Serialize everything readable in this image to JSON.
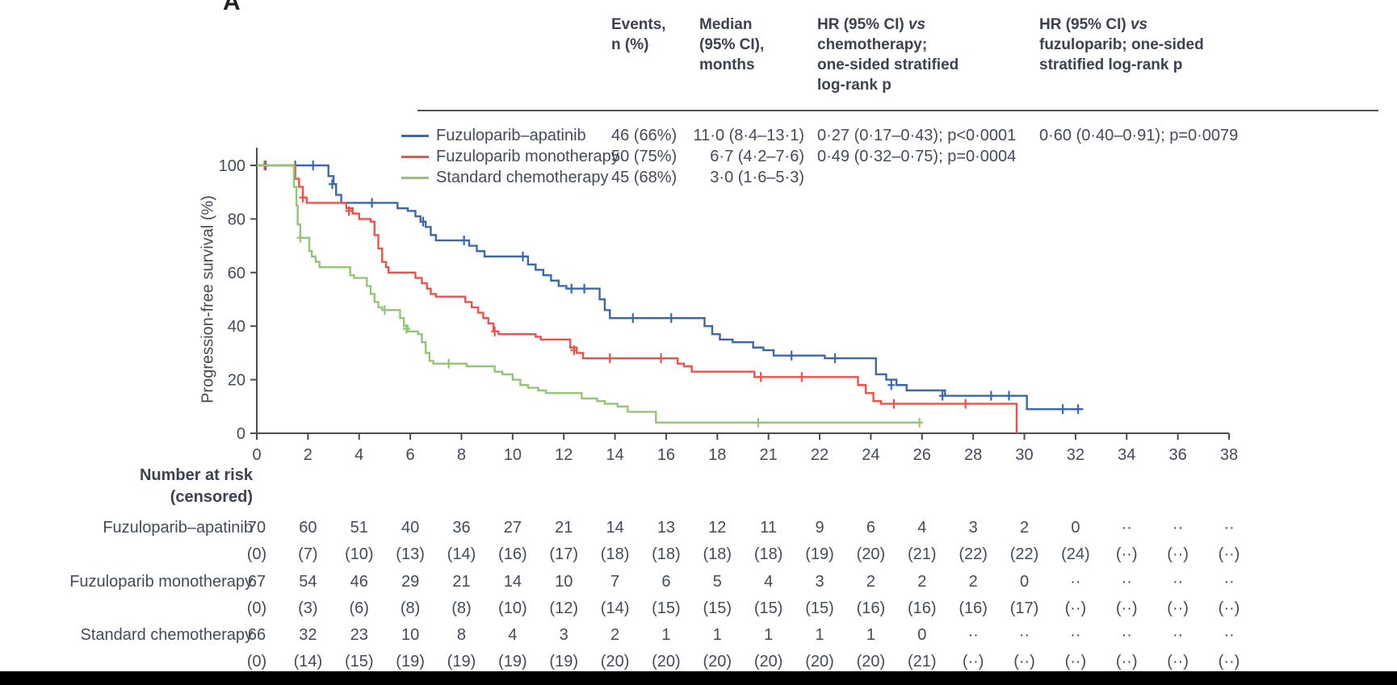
{
  "panel_label": "A",
  "colors": {
    "axis": "#4c4c4e",
    "text": "#434b5a",
    "rule": "#515151",
    "bottom_bar": "#000000"
  },
  "header": {
    "events": "Events,\nn (%)",
    "median": "Median\n(95% CI),\nmonths",
    "hr_chemo": {
      "pre": "HR (95% CI) ",
      "vs": "vs",
      "rest": "\nchemotherapy;\none-sided stratified\nlog-rank p"
    },
    "hr_fuzu": {
      "pre": "HR (95% CI) ",
      "vs": "vs",
      "rest": "\nfuzuloparib; one-sided\nstratified log-rank p"
    }
  },
  "chart_data": {
    "type": "line",
    "subtype": "kaplan-meier-step",
    "title": "",
    "xlabel": "",
    "ylabel": "Progression-free survival (%)",
    "xlim": [
      0,
      38
    ],
    "ylim": [
      0,
      100
    ],
    "yticks": [
      0,
      20,
      40,
      60,
      80,
      100
    ],
    "xtick_labels": [
      "0",
      "2",
      "4",
      "6",
      "8",
      "10",
      "12",
      "14",
      "16",
      "18",
      "21",
      "22",
      "24",
      "26",
      "28",
      "30",
      "32",
      "34",
      "36",
      "38"
    ],
    "grid": false,
    "legend_position": "top-left-of-plot",
    "groups": [
      {
        "name": "Fuzuloparib–apatinib",
        "color": "#3a68ae",
        "events": "46 (66%)",
        "median": "11·0 (8·4–13·1)",
        "hr_vs_chemo": "0·27 (0·17–0·43); p<0·0001",
        "hr_vs_fuzuloparib": "0·60 (0·40–0·91); p=0·0079",
        "steps": [
          [
            0,
            100
          ],
          [
            2.6,
            100
          ],
          [
            2.8,
            96
          ],
          [
            3.0,
            93
          ],
          [
            3.1,
            89
          ],
          [
            3.3,
            86
          ],
          [
            5.3,
            86
          ],
          [
            5.5,
            84
          ],
          [
            5.9,
            83
          ],
          [
            6.2,
            81
          ],
          [
            6.4,
            79
          ],
          [
            6.6,
            77
          ],
          [
            6.8,
            74
          ],
          [
            7.0,
            72
          ],
          [
            8.0,
            72
          ],
          [
            8.3,
            70
          ],
          [
            8.6,
            68
          ],
          [
            8.9,
            66
          ],
          [
            10.3,
            66
          ],
          [
            10.6,
            63
          ],
          [
            10.9,
            61
          ],
          [
            11.2,
            59
          ],
          [
            11.5,
            57
          ],
          [
            11.8,
            55
          ],
          [
            12.1,
            54
          ],
          [
            13.2,
            54
          ],
          [
            13.4,
            50
          ],
          [
            13.6,
            46
          ],
          [
            13.8,
            43
          ],
          [
            17.2,
            43
          ],
          [
            17.5,
            40
          ],
          [
            17.8,
            37
          ],
          [
            18.1,
            35
          ],
          [
            18.6,
            34
          ],
          [
            19.4,
            32
          ],
          [
            19.8,
            31
          ],
          [
            20.2,
            29
          ],
          [
            22.2,
            28
          ],
          [
            23.9,
            28
          ],
          [
            24.2,
            22
          ],
          [
            24.6,
            20
          ],
          [
            25.0,
            18
          ],
          [
            25.4,
            16
          ],
          [
            26.5,
            16
          ],
          [
            26.9,
            14
          ],
          [
            29.8,
            14
          ],
          [
            30.1,
            9
          ],
          [
            32.3,
            9
          ]
        ],
        "censors": [
          [
            0.35,
            100
          ],
          [
            1.5,
            100
          ],
          [
            2.2,
            100
          ],
          [
            2.95,
            93
          ],
          [
            4.5,
            86
          ],
          [
            6.5,
            79
          ],
          [
            8.1,
            72
          ],
          [
            10.4,
            66
          ],
          [
            12.3,
            54
          ],
          [
            12.8,
            54
          ],
          [
            14.7,
            43
          ],
          [
            16.2,
            43
          ],
          [
            20.9,
            29
          ],
          [
            22.6,
            28
          ],
          [
            24.8,
            18
          ],
          [
            26.8,
            14
          ],
          [
            28.7,
            14
          ],
          [
            29.4,
            14
          ],
          [
            31.5,
            9
          ],
          [
            32.1,
            9
          ]
        ]
      },
      {
        "name": "Fuzuloparib monotherapy",
        "color": "#ef5148",
        "events": "50 (75%)",
        "median": "6·7 (4·2–7·6)",
        "hr_vs_chemo": "0·49 (0·32–0·75); p=0·0004",
        "hr_vs_fuzuloparib": "",
        "steps": [
          [
            0,
            100
          ],
          [
            1.35,
            100
          ],
          [
            1.5,
            95
          ],
          [
            1.65,
            92
          ],
          [
            1.8,
            88
          ],
          [
            1.95,
            86
          ],
          [
            3.3,
            86
          ],
          [
            3.5,
            84
          ],
          [
            3.75,
            82
          ],
          [
            4.0,
            80
          ],
          [
            4.45,
            79
          ],
          [
            4.6,
            74
          ],
          [
            4.75,
            69
          ],
          [
            4.9,
            64
          ],
          [
            5.05,
            62
          ],
          [
            5.15,
            60
          ],
          [
            6.0,
            60
          ],
          [
            6.2,
            58
          ],
          [
            6.45,
            56
          ],
          [
            6.65,
            54
          ],
          [
            6.8,
            52
          ],
          [
            7.0,
            51
          ],
          [
            7.9,
            51
          ],
          [
            8.15,
            49
          ],
          [
            8.4,
            47
          ],
          [
            8.65,
            45
          ],
          [
            8.85,
            43
          ],
          [
            9.05,
            41
          ],
          [
            9.25,
            38
          ],
          [
            9.45,
            37
          ],
          [
            10.7,
            37
          ],
          [
            10.9,
            36
          ],
          [
            11.1,
            35
          ],
          [
            12.0,
            35
          ],
          [
            12.25,
            32
          ],
          [
            12.5,
            30
          ],
          [
            12.75,
            28
          ],
          [
            16.2,
            28
          ],
          [
            16.45,
            26
          ],
          [
            16.7,
            25
          ],
          [
            17.0,
            23
          ],
          [
            19.2,
            23
          ],
          [
            19.45,
            21
          ],
          [
            23.2,
            21
          ],
          [
            23.5,
            18
          ],
          [
            23.8,
            15
          ],
          [
            24.1,
            12
          ],
          [
            24.4,
            11
          ],
          [
            29.55,
            11
          ],
          [
            29.7,
            0
          ]
        ],
        "censors": [
          [
            0.3,
            100
          ],
          [
            1.8,
            88
          ],
          [
            3.6,
            83
          ],
          [
            9.3,
            38
          ],
          [
            12.4,
            31
          ],
          [
            13.8,
            28
          ],
          [
            15.8,
            28
          ],
          [
            19.7,
            21
          ],
          [
            21.3,
            21
          ],
          [
            24.9,
            11
          ],
          [
            27.7,
            11
          ]
        ]
      },
      {
        "name": "Standard chemotherapy",
        "color": "#93c672",
        "events": "45 (68%)",
        "median": "3·0 (1·6–5·3)",
        "hr_vs_chemo": "",
        "hr_vs_fuzuloparib": "",
        "steps": [
          [
            0,
            100
          ],
          [
            1.35,
            100
          ],
          [
            1.45,
            92
          ],
          [
            1.55,
            85
          ],
          [
            1.6,
            78
          ],
          [
            1.7,
            73
          ],
          [
            1.95,
            73
          ],
          [
            2.05,
            68
          ],
          [
            2.15,
            66
          ],
          [
            2.3,
            64
          ],
          [
            2.45,
            62
          ],
          [
            3.5,
            62
          ],
          [
            3.65,
            59
          ],
          [
            3.8,
            58
          ],
          [
            4.15,
            58
          ],
          [
            4.3,
            55
          ],
          [
            4.45,
            52
          ],
          [
            4.6,
            49
          ],
          [
            4.75,
            47
          ],
          [
            4.9,
            46
          ],
          [
            5.45,
            46
          ],
          [
            5.6,
            43
          ],
          [
            5.75,
            40
          ],
          [
            5.9,
            38
          ],
          [
            6.3,
            37
          ],
          [
            6.45,
            34
          ],
          [
            6.6,
            30
          ],
          [
            6.75,
            27
          ],
          [
            6.9,
            26
          ],
          [
            8.0,
            26
          ],
          [
            8.2,
            25
          ],
          [
            9.1,
            25
          ],
          [
            9.3,
            23
          ],
          [
            9.6,
            22
          ],
          [
            10.0,
            20
          ],
          [
            10.3,
            18
          ],
          [
            10.6,
            17
          ],
          [
            11.0,
            16
          ],
          [
            11.3,
            15
          ],
          [
            12.4,
            15
          ],
          [
            12.7,
            13
          ],
          [
            13.3,
            12
          ],
          [
            13.6,
            11
          ],
          [
            14.1,
            10
          ],
          [
            14.5,
            8
          ],
          [
            15.3,
            8
          ],
          [
            15.6,
            4
          ],
          [
            25.9,
            4
          ]
        ],
        "censors": [
          [
            1.7,
            73
          ],
          [
            5.0,
            46
          ],
          [
            5.85,
            39
          ],
          [
            7.5,
            26
          ],
          [
            19.6,
            4
          ],
          [
            25.9,
            4
          ]
        ]
      }
    ],
    "risk_table": {
      "title": "Number at risk\n(censored)",
      "rows": [
        {
          "label": "Fuzuloparib–apatinib",
          "at_risk": [
            "70",
            "60",
            "51",
            "40",
            "36",
            "27",
            "21",
            "14",
            "13",
            "12",
            "11",
            "9",
            "6",
            "4",
            "3",
            "2",
            "0",
            "··",
            "··",
            "··"
          ],
          "censored": [
            "(0)",
            "(7)",
            "(10)",
            "(13)",
            "(14)",
            "(16)",
            "(17)",
            "(18)",
            "(18)",
            "(18)",
            "(18)",
            "(19)",
            "(20)",
            "(21)",
            "(22)",
            "(22)",
            "(24)",
            "(··)",
            "(··)",
            "(··)"
          ]
        },
        {
          "label": "Fuzuloparib monotherapy",
          "at_risk": [
            "67",
            "54",
            "46",
            "29",
            "21",
            "14",
            "10",
            "7",
            "6",
            "5",
            "4",
            "3",
            "2",
            "2",
            "2",
            "0",
            "··",
            "··",
            "··",
            "··"
          ],
          "censored": [
            "(0)",
            "(3)",
            "(6)",
            "(8)",
            "(8)",
            "(10)",
            "(12)",
            "(14)",
            "(15)",
            "(15)",
            "(15)",
            "(15)",
            "(16)",
            "(16)",
            "(16)",
            "(17)",
            "(··)",
            "(··)",
            "(··)",
            "(··)"
          ]
        },
        {
          "label": "Standard chemotherapy",
          "at_risk": [
            "66",
            "32",
            "23",
            "10",
            "8",
            "4",
            "3",
            "2",
            "1",
            "1",
            "1",
            "1",
            "1",
            "0",
            "··",
            "··",
            "··",
            "··",
            "··",
            "··"
          ],
          "censored": [
            "(0)",
            "(14)",
            "(15)",
            "(19)",
            "(19)",
            "(19)",
            "(19)",
            "(20)",
            "(20)",
            "(20)",
            "(20)",
            "(20)",
            "(20)",
            "(21)",
            "(··)",
            "(··)",
            "(··)",
            "(··)",
            "(··)",
            "(··)"
          ]
        }
      ]
    }
  }
}
